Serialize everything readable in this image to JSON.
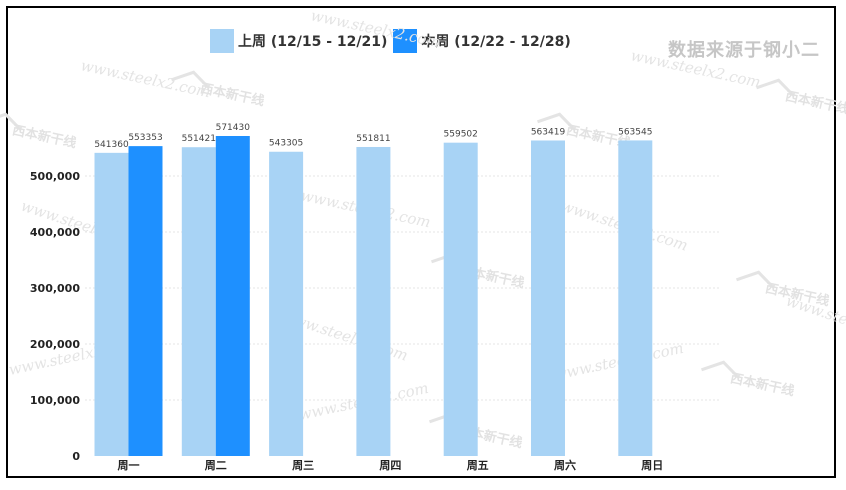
{
  "source_note": "数据来源于钢小二",
  "watermark": {
    "url": "www.steelx2.com",
    "logo_text": "西本新干线"
  },
  "colors": {
    "last_week": "#a8d3f5",
    "this_week": "#1e90ff",
    "gridline": "#e6e6e6",
    "axis_text": "#222222",
    "label_text": "#444444"
  },
  "chart_data": {
    "type": "bar",
    "categories": [
      "周一",
      "周二",
      "周三",
      "周四",
      "周五",
      "周六",
      "周日"
    ],
    "series": [
      {
        "name": "上周 (12/15 - 12/21)",
        "color": "#a8d3f5",
        "values": [
          541360,
          551421,
          543305,
          551811,
          559502,
          563419,
          563545
        ]
      },
      {
        "name": "本周 (12/22 - 12/28)",
        "color": "#1e90ff",
        "values": [
          553353,
          571430,
          null,
          null,
          null,
          null,
          null
        ]
      }
    ],
    "ylim": [
      0,
      600000
    ],
    "yticks": [
      0,
      100000,
      200000,
      300000,
      400000,
      500000
    ],
    "ytick_labels": [
      "0",
      "100,000",
      "200,000",
      "300,000",
      "400,000",
      "500,000"
    ],
    "grid": true,
    "legend_position": "top",
    "title": "",
    "xlabel": "",
    "ylabel": ""
  }
}
